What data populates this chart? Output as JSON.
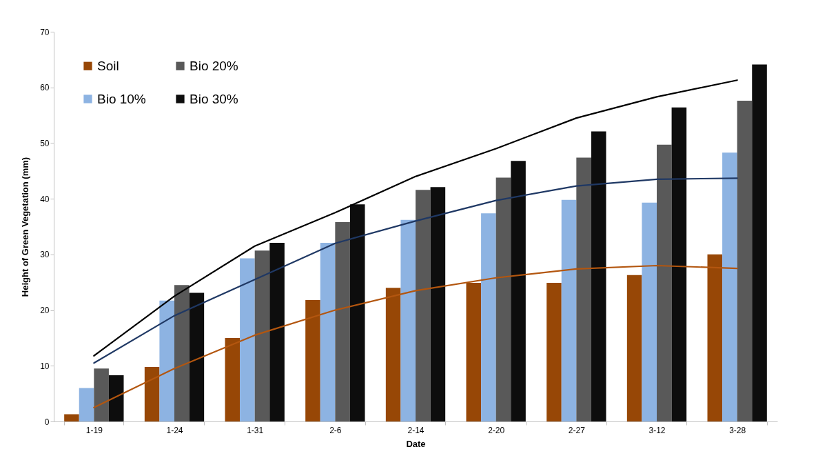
{
  "chart_data": {
    "type": "bar",
    "xlabel": "Date",
    "ylabel": "Height of Green Vegetation (mm)",
    "categories": [
      "1-19",
      "1-24",
      "1-31",
      "2-6",
      "2-14",
      "2-20",
      "2-27",
      "3-12",
      "3-28"
    ],
    "series": [
      {
        "name": "Soil",
        "color": "#974706",
        "values": [
          1.3,
          9.8,
          15.0,
          21.8,
          24.0,
          24.9,
          24.9,
          26.3,
          30.0
        ]
      },
      {
        "name": "Bio 10%",
        "color": "#8db3e2",
        "values": [
          6.0,
          21.7,
          29.3,
          32.1,
          36.2,
          37.4,
          39.8,
          39.3,
          48.3
        ]
      },
      {
        "name": "Bio 20%",
        "color": "#595959",
        "values": [
          9.5,
          24.5,
          30.7,
          35.8,
          41.6,
          43.8,
          47.4,
          49.7,
          57.6
        ]
      },
      {
        "name": "Bio 30%",
        "color": "#0d0d0d",
        "values": [
          8.3,
          23.1,
          32.1,
          39.0,
          42.1,
          46.8,
          52.1,
          56.4,
          64.1
        ]
      },
      {
        "type": "line",
        "color": "#b3560f",
        "values": [
          2.5,
          9.5,
          15.5,
          20.0,
          23.5,
          25.8,
          27.4,
          28.0,
          27.5
        ]
      },
      {
        "type": "line",
        "color": "#1f3864",
        "values": [
          10.5,
          19.0,
          25.5,
          32.0,
          36.0,
          39.7,
          42.3,
          43.5,
          43.7
        ]
      },
      {
        "type": "line",
        "color": "#000000",
        "values": [
          11.8,
          22.5,
          31.5,
          37.5,
          44.0,
          49.0,
          54.5,
          58.3,
          61.3
        ]
      }
    ],
    "ylim": [
      0,
      70
    ],
    "yticks": [
      0,
      10,
      20,
      30,
      40,
      50,
      60,
      70
    ],
    "grid": false,
    "legend": "top left"
  }
}
